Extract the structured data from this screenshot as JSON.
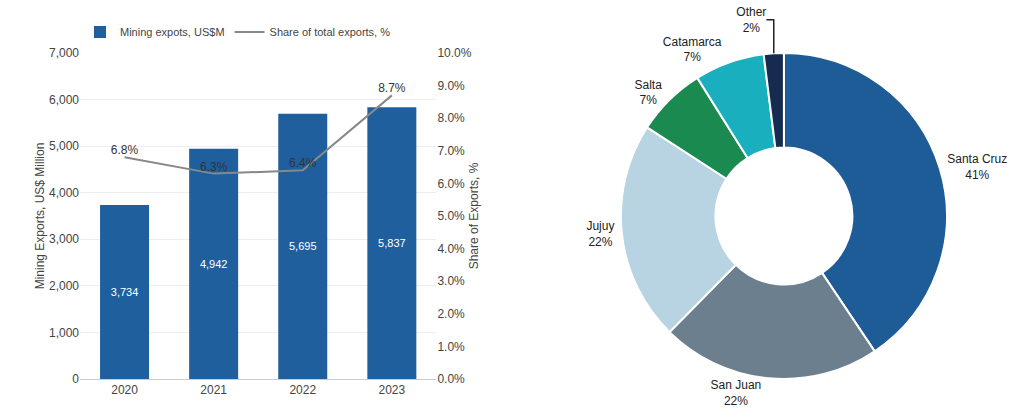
{
  "chart_data": [
    {
      "type": "bar",
      "categories": [
        "2020",
        "2021",
        "2022",
        "2023"
      ],
      "series": [
        {
          "name": "Mining expots, US$M",
          "type": "bar",
          "color": "#1F5F9E",
          "values": [
            3734,
            4942,
            5695,
            5837
          ],
          "value_labels": [
            "3,734",
            "4,942",
            "5,695",
            "5,837"
          ]
        },
        {
          "name": "Share of total exports, %",
          "type": "line",
          "color": "#888888",
          "axis": "y2",
          "values": [
            6.8,
            6.3,
            6.4,
            8.7
          ],
          "value_labels": [
            "6.8%",
            "6.3%",
            "6.4%",
            "8.7%"
          ]
        }
      ],
      "ylabel": "Mining Exports, US$ Million",
      "y2label": "Share of Exports, %",
      "ylim": [
        0,
        7000
      ],
      "yticks": [
        0,
        {
          "value": 1000,
          "label": "1,000"
        },
        {
          "value": 2000,
          "label": "2,000"
        },
        {
          "value": 3000,
          "label": "3,000"
        },
        {
          "value": 4000,
          "label": "4,000"
        },
        {
          "value": 5000,
          "label": "5,000"
        },
        {
          "value": 6000,
          "label": "6,000"
        },
        {
          "value": 7000,
          "label": "7,000"
        }
      ],
      "y2lim": [
        0.0,
        10.0
      ],
      "y2ticks": [
        {
          "value": 0.0,
          "label": "0.0%"
        },
        {
          "value": 1.0,
          "label": "1.0%"
        },
        {
          "value": 2.0,
          "label": "2.0%"
        },
        {
          "value": 3.0,
          "label": "3.0%"
        },
        {
          "value": 4.0,
          "label": "4.0%"
        },
        {
          "value": 5.0,
          "label": "5.0%"
        },
        {
          "value": 6.0,
          "label": "6.0%"
        },
        {
          "value": 7.0,
          "label": "7.0%"
        },
        {
          "value": 8.0,
          "label": "8.0%"
        },
        {
          "value": 9.0,
          "label": "9.0%"
        },
        {
          "value": 10.0,
          "label": "10.0%"
        }
      ],
      "grid": true,
      "legend": "upper left",
      "data_labels": true
    },
    {
      "type": "donut",
      "categories": [
        "Santa Cruz",
        "San Juan",
        "Jujuy",
        "Salta",
        "Catamarca",
        "Other"
      ],
      "values": [
        41,
        22,
        22,
        7,
        7,
        2
      ],
      "value_labels": [
        "41%",
        "22%",
        "22%",
        "7%",
        "7%",
        "2%"
      ],
      "colors": [
        "#1D5C96",
        "#6B7F8E",
        "#B8D4E3",
        "#1A8A50",
        "#1AAFBE",
        "#162B50"
      ],
      "data_labels": true
    }
  ]
}
